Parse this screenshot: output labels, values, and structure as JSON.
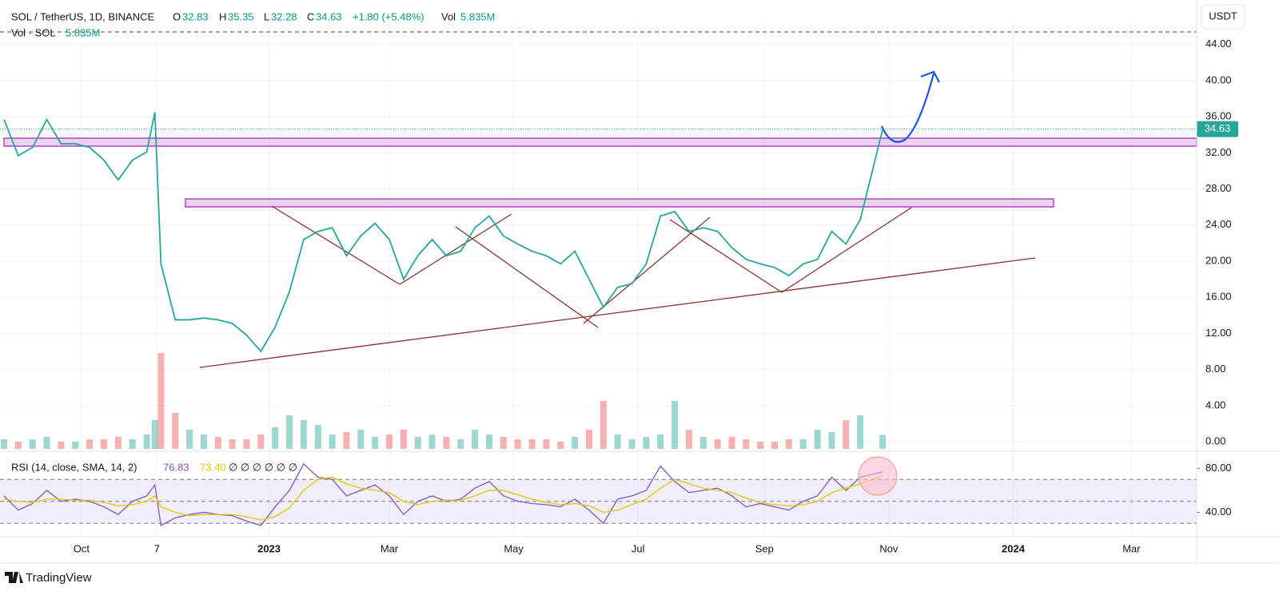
{
  "header": {
    "symbol": "SOL / TetherUS, 1D, BINANCE",
    "open_label": "O",
    "open": "32.83",
    "high_label": "H",
    "high": "35.35",
    "low_label": "L",
    "low": "32.28",
    "close_label": "C",
    "close": "34.63",
    "change": "+1.80 (+5.48%)",
    "vol_label": "Vol",
    "vol": "5.835M",
    "vol_series_label": "Vol · SOL",
    "vol_series_value": "5.835M",
    "currency_button": "USDT",
    "rsi_label": "RSI (14, close, SMA, 14, 2)",
    "rsi_value": "76.83",
    "rsi_sma_value": "73.40",
    "rsi_extra": "∅ ∅ ∅ ∅ ∅ ∅",
    "brand": "TradingView"
  },
  "chart_data": {
    "type": "line",
    "last_price": 34.63,
    "x": [
      0,
      7,
      14,
      21,
      28,
      35,
      42,
      49,
      56,
      63,
      70,
      74,
      77,
      84,
      91,
      98,
      105,
      112,
      119,
      126,
      133,
      140,
      147,
      154,
      161,
      168,
      175,
      182,
      189,
      196,
      203,
      210,
      217,
      224,
      231,
      238,
      245,
      252,
      259,
      266,
      273,
      280,
      287,
      294,
      301,
      308,
      315,
      322,
      329,
      336,
      343,
      350,
      357,
      364,
      371,
      378,
      385,
      392,
      399,
      406,
      413,
      420,
      431
    ],
    "series": [
      {
        "name": "SOL / TetherUS",
        "color": "#26a69a",
        "values": [
          35.7,
          31.7,
          32.6,
          35.7,
          33,
          33,
          32.6,
          31.2,
          29,
          31.2,
          32.1,
          36.5,
          19.7,
          13.5,
          13.5,
          13.7,
          13.5,
          13.1,
          11.8,
          10,
          12.7,
          16.6,
          22.4,
          23.3,
          23.7,
          20.6,
          22.8,
          24.2,
          22.4,
          18,
          20.6,
          22.4,
          20.6,
          21.1,
          23.7,
          25,
          22.8,
          21.9,
          21.1,
          20.6,
          19.7,
          21.1,
          18,
          14.9,
          17.1,
          17.5,
          19.7,
          25,
          25.5,
          23.3,
          23.7,
          23.3,
          21.5,
          20.2,
          19.7,
          19.3,
          18.4,
          19.7,
          20.2,
          23.3,
          21.9,
          24.6,
          34.63
        ]
      }
    ],
    "volume": [
      4,
      3,
      4,
      5,
      3,
      3,
      4,
      4,
      5,
      4,
      6,
      12,
      40,
      15,
      8,
      6,
      5,
      4,
      4,
      6,
      9,
      14,
      12,
      10,
      6,
      7,
      8,
      5,
      6,
      8,
      5,
      6,
      5,
      4,
      8,
      6,
      5,
      4,
      4,
      4,
      3,
      5,
      8,
      20,
      6,
      4,
      5,
      6,
      20,
      8,
      5,
      4,
      5,
      4,
      3,
      3,
      4,
      4,
      8,
      7,
      12,
      14,
      5.835
    ],
    "rsi": [
      55,
      42,
      48,
      60,
      50,
      52,
      50,
      45,
      38,
      50,
      55,
      65,
      28,
      35,
      38,
      40,
      38,
      37,
      32,
      28,
      45,
      60,
      84,
      72,
      70,
      55,
      60,
      65,
      55,
      38,
      50,
      55,
      50,
      52,
      62,
      68,
      55,
      50,
      48,
      47,
      45,
      52,
      42,
      30,
      52,
      55,
      60,
      82,
      68,
      58,
      60,
      62,
      55,
      45,
      48,
      45,
      42,
      50,
      55,
      72,
      60,
      72,
      76.83
    ],
    "rsi_sma": [
      52,
      50,
      49,
      52,
      52,
      51,
      51,
      49,
      46,
      47,
      50,
      55,
      45,
      40,
      37,
      38,
      38,
      38,
      36,
      33,
      36,
      44,
      60,
      70,
      72,
      66,
      62,
      60,
      58,
      50,
      47,
      50,
      51,
      51,
      55,
      60,
      60,
      56,
      52,
      49,
      47,
      48,
      46,
      40,
      42,
      47,
      52,
      62,
      70,
      66,
      62,
      60,
      58,
      53,
      49,
      47,
      46,
      47,
      50,
      58,
      62,
      66,
      73.4
    ],
    "xlim": [
      0,
      585
    ],
    "xticks": [
      {
        "value": 38,
        "label": "Oct"
      },
      {
        "value": 75,
        "label": "7"
      },
      {
        "value": 130,
        "label": "2023"
      },
      {
        "value": 189,
        "label": "Mar"
      },
      {
        "value": 250,
        "label": "May"
      },
      {
        "value": 311,
        "label": "Jul"
      },
      {
        "value": 373,
        "label": "Sep"
      },
      {
        "value": 434,
        "label": "Nov"
      },
      {
        "value": 495,
        "label": "2024"
      },
      {
        "value": 553,
        "label": "Mar"
      }
    ],
    "ylim": [
      -1.06,
      46.28
    ],
    "yticks": [
      {
        "value": 0,
        "label": "0.00"
      },
      {
        "value": 4,
        "label": "4.00"
      },
      {
        "value": 8,
        "label": "8.00"
      },
      {
        "value": 12,
        "label": "12.00"
      },
      {
        "value": 16,
        "label": "16.00"
      },
      {
        "value": 20,
        "label": "20.00"
      },
      {
        "value": 24,
        "label": "24.00"
      },
      {
        "value": 28,
        "label": "28.00"
      },
      {
        "value": 32,
        "label": "32.00"
      },
      {
        "value": 36,
        "label": "36.00"
      },
      {
        "value": 40,
        "label": "40.00"
      },
      {
        "value": 44,
        "label": "44.00"
      }
    ],
    "rsilim": [
      17.8,
      95.6
    ],
    "rsiticks": [
      {
        "value": 40,
        "label": "40.00"
      },
      {
        "value": 80,
        "label": "80.00"
      }
    ],
    "rsi_bands": [
      30,
      50,
      70
    ],
    "grid": true
  }
}
